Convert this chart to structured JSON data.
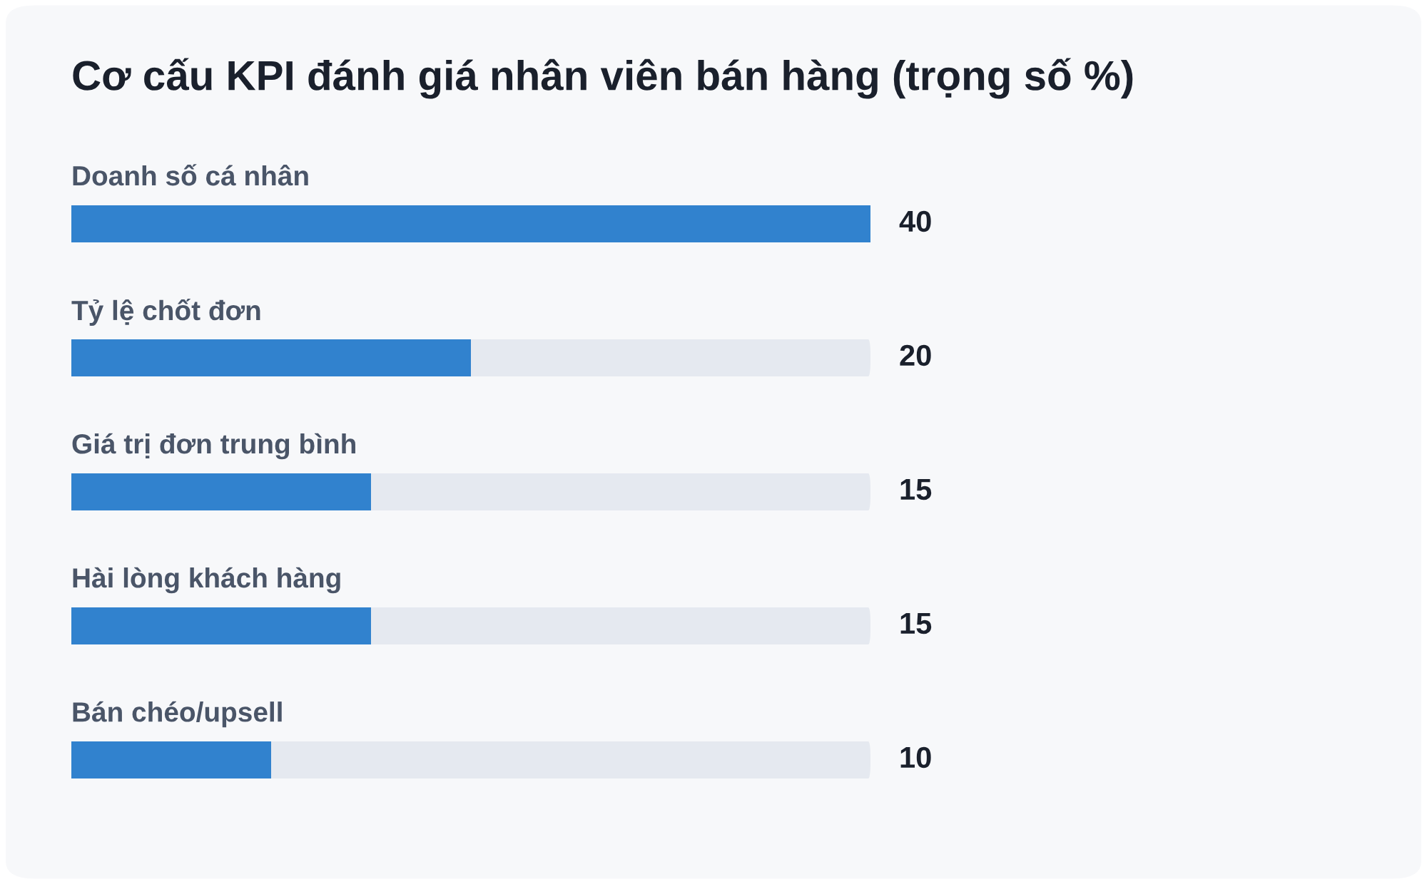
{
  "chart_data": {
    "type": "bar",
    "orientation": "horizontal",
    "title": "Cơ cấu KPI đánh giá nhân viên bán hàng (trọng số %)",
    "categories": [
      "Doanh số cá nhân",
      "Tỷ lệ chốt đơn",
      "Giá trị đơn trung bình",
      "Hài lòng khách hàng",
      "Bán chéo/upsell"
    ],
    "values": [
      40,
      20,
      15,
      15,
      10
    ],
    "color": "#3182ce",
    "data_labels": true,
    "tick_labels": "y"
  }
}
